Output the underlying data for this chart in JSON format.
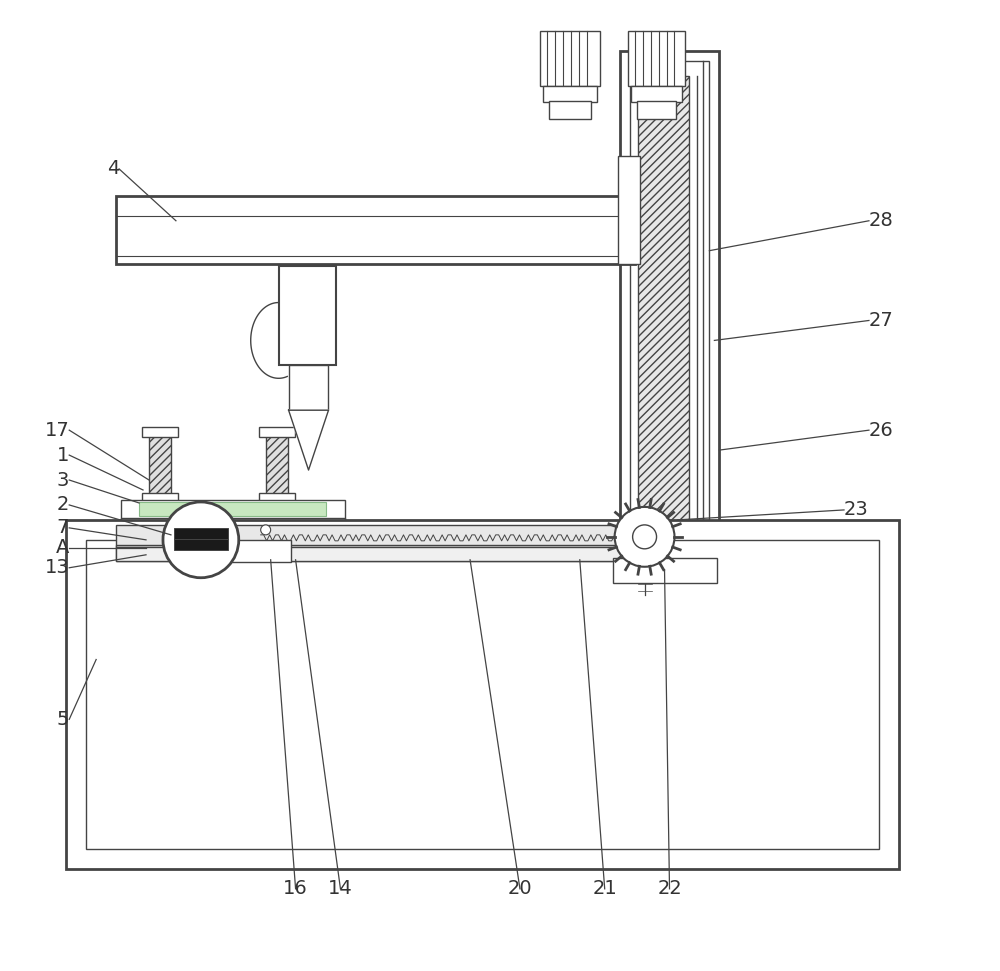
{
  "bg_color": "white",
  "line_color": "#444444",
  "label_color": "#333333",
  "label_fontsize": 14,
  "fig_width": 10.0,
  "fig_height": 9.71
}
